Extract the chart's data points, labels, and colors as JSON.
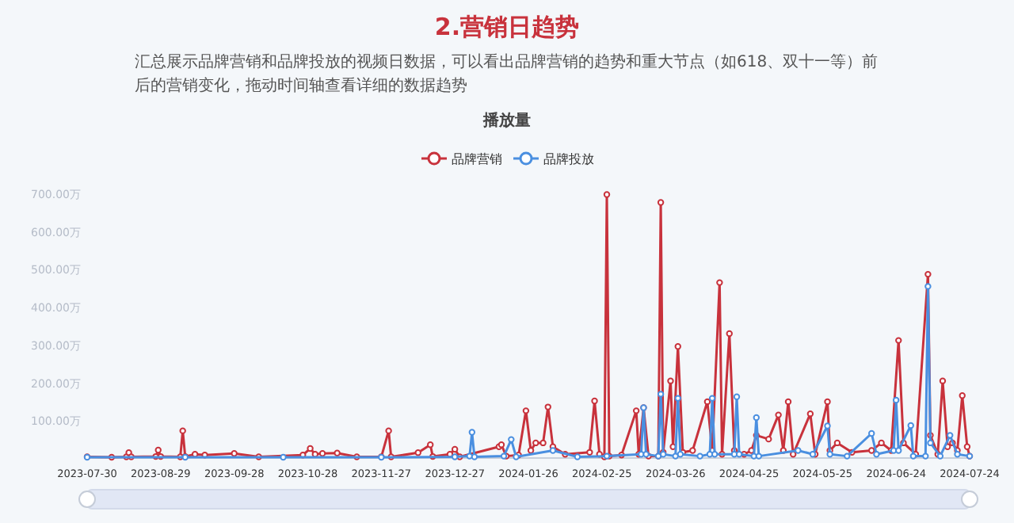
{
  "chart_data": {
    "type": "line",
    "title": "2.营销日趋势",
    "subtitle": "汇总展示品牌营销和品牌投放的视频日数据，可以看出品牌营销的趋势和重大节点（如618、双十一等）前后的营销变化，拖动时间轴查看详细的数据趋势",
    "annotations": [
      "播放量"
    ],
    "legend": "top",
    "marker": "circle",
    "line_style": "solid",
    "grid": false,
    "xlim": [
      "2023-07-30",
      "2024-07-24"
    ],
    "xticks": [
      "2023-07-30",
      "2023-08-29",
      "2023-09-28",
      "2023-10-28",
      "2023-11-27",
      "2023-12-27",
      "2024-01-26",
      "2024-02-25",
      "2024-03-26",
      "2024-04-25",
      "2024-05-25",
      "2024-06-24",
      "2024-07-24"
    ],
    "ylim": [
      0,
      700
    ],
    "yticks": [
      {
        "value": 100,
        "label": "100.00万"
      },
      {
        "value": 200,
        "label": "200.00万"
      },
      {
        "value": 300,
        "label": "300.00万"
      },
      {
        "value": 400,
        "label": "400.00万"
      },
      {
        "value": 500,
        "label": "500.00万"
      },
      {
        "value": 600,
        "label": "600.00万"
      },
      {
        "value": 700,
        "label": "700.00万"
      }
    ],
    "series": [
      {
        "name": "品牌营销",
        "color": "#c8323c",
        "x": [
          "2023-07-30",
          "2023-08-09",
          "2023-08-15",
          "2023-08-16",
          "2023-08-17",
          "2023-08-27",
          "2023-08-28",
          "2023-08-29",
          "2023-09-06",
          "2023-09-07",
          "2023-09-08",
          "2023-09-12",
          "2023-09-16",
          "2023-09-28",
          "2023-10-08",
          "2023-10-26",
          "2023-10-29",
          "2023-10-31",
          "2023-11-03",
          "2023-11-09",
          "2023-11-17",
          "2023-11-27",
          "2023-11-30",
          "2023-12-01",
          "2023-12-12",
          "2023-12-17",
          "2023-12-18",
          "2023-12-25",
          "2023-12-27",
          "2023-12-29",
          "2024-01-14",
          "2024-01-15",
          "2024-01-17",
          "2024-01-22",
          "2024-01-25",
          "2024-01-27",
          "2024-01-29",
          "2024-02-01",
          "2024-02-03",
          "2024-02-05",
          "2024-02-10",
          "2024-02-20",
          "2024-02-22",
          "2024-02-24",
          "2024-02-26",
          "2024-02-27",
          "2024-02-28",
          "2024-03-04",
          "2024-03-10",
          "2024-03-11",
          "2024-03-13",
          "2024-03-15",
          "2024-03-19",
          "2024-03-20",
          "2024-03-21",
          "2024-03-24",
          "2024-03-25",
          "2024-03-27",
          "2024-03-29",
          "2024-04-02",
          "2024-04-08",
          "2024-04-10",
          "2024-04-13",
          "2024-04-14",
          "2024-04-17",
          "2024-04-19",
          "2024-04-23",
          "2024-04-26",
          "2024-04-28",
          "2024-05-03",
          "2024-05-07",
          "2024-05-09",
          "2024-05-11",
          "2024-05-13",
          "2024-05-20",
          "2024-05-22",
          "2024-05-27",
          "2024-05-28",
          "2024-05-31",
          "2024-06-06",
          "2024-06-14",
          "2024-06-18",
          "2024-06-22",
          "2024-06-25",
          "2024-06-27",
          "2024-07-02",
          "2024-07-07",
          "2024-07-08",
          "2024-07-11",
          "2024-07-13",
          "2024-07-15",
          "2024-07-17",
          "2024-07-19",
          "2024-07-21",
          "2024-07-23",
          "2024-07-24"
        ],
        "values": [
          3,
          2,
          3,
          14,
          3,
          4,
          21,
          4,
          3,
          72,
          4,
          10,
          8,
          12,
          3,
          8,
          25,
          10,
          12,
          13,
          3,
          3,
          72,
          3,
          14,
          35,
          4,
          10,
          23,
          3,
          30,
          35,
          5,
          8,
          125,
          20,
          40,
          40,
          135,
          30,
          10,
          15,
          151,
          10,
          3,
          697,
          5,
          8,
          125,
          10,
          133,
          5,
          5,
          676,
          15,
          204,
          30,
          295,
          15,
          20,
          149,
          20,
          464,
          10,
          329,
          20,
          10,
          20,
          60,
          50,
          114,
          20,
          149,
          10,
          117,
          10,
          149,
          20,
          40,
          15,
          20,
          40,
          20,
          311,
          40,
          10,
          486,
          60,
          10,
          204,
          30,
          40,
          20,
          165,
          30,
          5
        ]
      },
      {
        "name": "品牌投放",
        "color": "#4a8fe0",
        "x": [
          "2023-07-30",
          "2023-09-08",
          "2023-10-18",
          "2023-11-27",
          "2023-12-27",
          "2024-01-02",
          "2024-01-03",
          "2024-01-04",
          "2024-01-16",
          "2024-01-19",
          "2024-01-21",
          "2024-02-05",
          "2024-02-15",
          "2024-02-27",
          "2024-03-12",
          "2024-03-13",
          "2024-03-14",
          "2024-03-19",
          "2024-03-20",
          "2024-03-21",
          "2024-03-26",
          "2024-03-27",
          "2024-03-28",
          "2024-04-05",
          "2024-04-09",
          "2024-04-10",
          "2024-04-11",
          "2024-04-19",
          "2024-04-20",
          "2024-04-21",
          "2024-04-27",
          "2024-04-28",
          "2024-04-29",
          "2024-05-15",
          "2024-05-21",
          "2024-05-27",
          "2024-05-28",
          "2024-06-04",
          "2024-06-14",
          "2024-06-16",
          "2024-06-23",
          "2024-06-24",
          "2024-06-25",
          "2024-06-30",
          "2024-07-01",
          "2024-07-06",
          "2024-07-07",
          "2024-07-08",
          "2024-07-12",
          "2024-07-16",
          "2024-07-19",
          "2024-07-24"
        ],
        "values": [
          2,
          2,
          2,
          2,
          3,
          5,
          68,
          3,
          5,
          49,
          3,
          20,
          3,
          5,
          10,
          133,
          10,
          5,
          169,
          10,
          5,
          158,
          10,
          5,
          10,
          158,
          10,
          10,
          162,
          10,
          5,
          107,
          5,
          20,
          10,
          85,
          10,
          5,
          65,
          10,
          20,
          153,
          20,
          86,
          5,
          5,
          454,
          40,
          5,
          60,
          10,
          5
        ]
      }
    ]
  }
}
